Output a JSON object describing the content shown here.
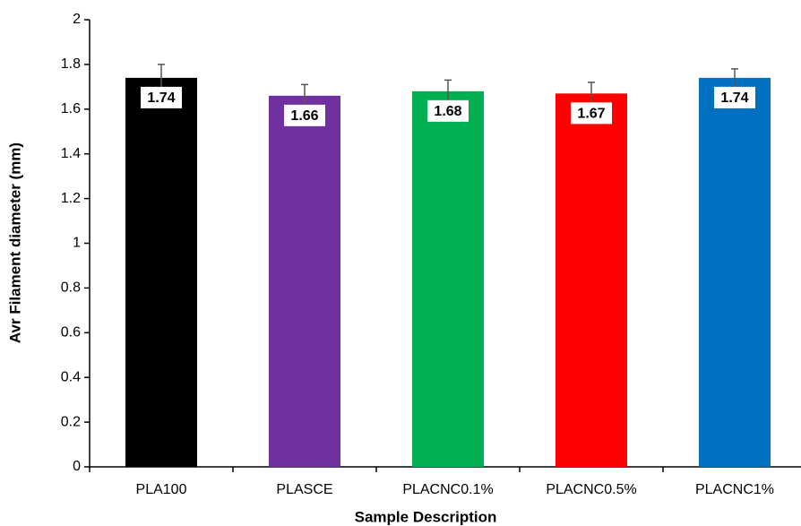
{
  "chart_data": {
    "type": "bar",
    "x_label": "Sample Description",
    "y_label": "Avr Filament diameter (mm)",
    "categories": [
      "PLA100",
      "PLASCE",
      "PLACNC0.1%",
      "PLACNC0.5%",
      "PLACNC1%"
    ],
    "values": [
      1.74,
      1.66,
      1.68,
      1.67,
      1.74
    ],
    "errors": [
      0.06,
      0.05,
      0.05,
      0.05,
      0.04
    ],
    "colors": [
      "#000000",
      "#7030a0",
      "#00b050",
      "#ff0000",
      "#0070c0"
    ],
    "ylim": [
      0,
      2
    ],
    "yticks": [
      0,
      0.2,
      0.4,
      0.6,
      0.8,
      1,
      1.2,
      1.4,
      1.6,
      1.8,
      2
    ],
    "grid": false
  }
}
